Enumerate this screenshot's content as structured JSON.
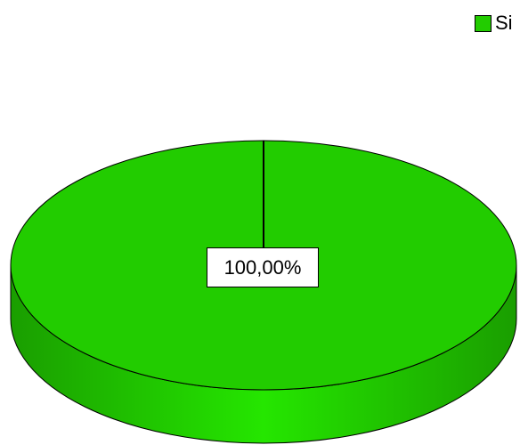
{
  "chart_data": {
    "type": "pie",
    "slices": [
      {
        "label": "Si",
        "value": 100.0,
        "display": "100,00%",
        "color": "#22cc00"
      }
    ],
    "legend": {
      "position": "top-right",
      "entries": [
        "Si"
      ]
    },
    "style": "3d"
  }
}
